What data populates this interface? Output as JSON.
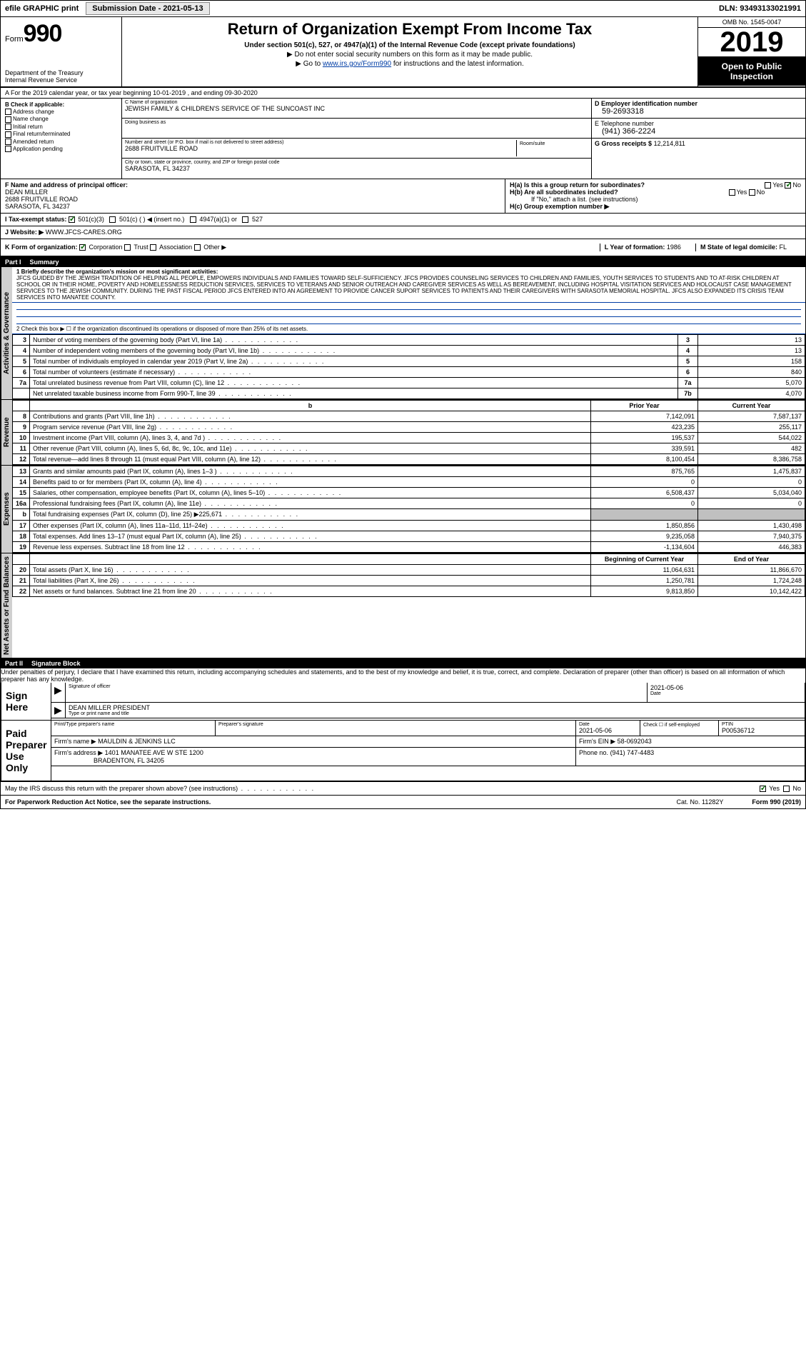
{
  "topbar": {
    "efile": "efile GRAPHIC print",
    "btn_label": "Submission Date - 2021-05-13",
    "dln": "DLN: 93493133021991"
  },
  "header": {
    "form_prefix": "Form",
    "form_num": "990",
    "dept": "Department of the Treasury\nInternal Revenue Service",
    "title": "Return of Organization Exempt From Income Tax",
    "sub1": "Under section 501(c), 527, or 4947(a)(1) of the Internal Revenue Code (except private foundations)",
    "sub2": "▶ Do not enter social security numbers on this form as it may be made public.",
    "sub3_pre": "▶ Go to ",
    "sub3_link": "www.irs.gov/Form990",
    "sub3_post": " for instructions and the latest information.",
    "omb": "OMB No. 1545-0047",
    "year": "2019",
    "open": "Open to Public Inspection"
  },
  "row_a": "A For the 2019 calendar year, or tax year beginning 10-01-2019  , and ending 09-30-2020",
  "col_b": {
    "title": "B Check if applicable:",
    "items": [
      "Address change",
      "Name change",
      "Initial return",
      "Final return/terminated",
      "Amended return",
      "Application pending"
    ]
  },
  "col_c": {
    "name_lbl": "C Name of organization",
    "name": "JEWISH FAMILY & CHILDREN'S SERVICE OF THE SUNCOAST INC",
    "dba_lbl": "Doing business as",
    "dba": "",
    "addr_lbl": "Number and street (or P.O. box if mail is not delivered to street address)",
    "addr": "2688 FRUITVILLE ROAD",
    "room_lbl": "Room/suite",
    "city_lbl": "City or town, state or province, country, and ZIP or foreign postal code",
    "city": "SARASOTA, FL  34237"
  },
  "col_d": {
    "lbl": "D Employer identification number",
    "val": "59-2693318"
  },
  "col_e": {
    "lbl": "E Telephone number",
    "val": "(941) 366-2224"
  },
  "col_g": {
    "lbl": "G Gross receipts $",
    "val": "12,214,811"
  },
  "col_f": {
    "lbl": "F  Name and address of principal officer:",
    "name": "DEAN MILLER",
    "addr1": "2688 FRUITVILLE ROAD",
    "addr2": "SARASOTA, FL  34237"
  },
  "col_h": {
    "ha": "H(a)  Is this a group return for subordinates?",
    "hb": "H(b)  Are all subordinates included?",
    "hb_note": "If \"No,\" attach a list. (see instructions)",
    "hc": "H(c)  Group exemption number ▶",
    "yes": "Yes",
    "no": "No"
  },
  "row_i": {
    "lbl": "I   Tax-exempt status:",
    "o1": "501(c)(3)",
    "o2": "501(c) (  ) ◀ (insert no.)",
    "o3": "4947(a)(1) or",
    "o4": "527"
  },
  "row_j": {
    "lbl": "J   Website: ▶",
    "val": "WWW.JFCS-CARES.ORG"
  },
  "row_k": {
    "lbl": "K Form of organization:",
    "o1": "Corporation",
    "o2": "Trust",
    "o3": "Association",
    "o4": "Other ▶",
    "l_lbl": "L Year of formation:",
    "l_val": "1986",
    "m_lbl": "M State of legal domicile:",
    "m_val": "FL"
  },
  "part1": {
    "hdr_num": "Part I",
    "hdr_title": "Summary",
    "side_gov": "Activities & Governance",
    "side_rev": "Revenue",
    "side_exp": "Expenses",
    "side_net": "Net Assets or Fund Balances",
    "q1_lbl": "1  Briefly describe the organization's mission or most significant activities:",
    "q1_text": "JFCS GUIDED BY THE JEWISH TRADITION OF HELPING ALL PEOPLE, EMPOWERS INDIVIDUALS AND FAMILIES TOWARD SELF-SUFFICIENCY. JFCS PROVIDES COUNSELING SERVICES TO CHILDREN AND FAMILIES, YOUTH SERVICES TO STUDENTS AND TO AT-RISK CHILDREN AT SCHOOL OR IN THEIR HOME, POVERTY AND HOMELESSNESS REDUCTION SERVICES, SERVICES TO VETERANS AND SENIOR OUTREACH AND CAREGIVER SERVICES AS WELL AS BEREAVEMENT, INCLUDING HOSPITAL VISITATION SERVICES AND HOLOCAUST CASE MANAGEMENT SERVICES TO THE JEWISH COMMUNITY. DURING THE PAST FISCAL PERIOD JFCS ENTERED INTO AN AGREEMENT TO PROVIDE CANCER SUPORT SERVICES TO PATIENTS AND THEIR CAREGIVERS WITH SARASOTA MEMORIAL HOSPITAL. JFCS ALSO EXPANDED ITS CRISIS TEAM SERVICES INTO MANATEE COUNTY.",
    "q2": "2   Check this box ▶ ☐ if the organization discontinued its operations or disposed of more than 25% of its net assets.",
    "lines_gov": [
      {
        "n": "3",
        "d": "Number of voting members of the governing body (Part VI, line 1a)",
        "b": "3",
        "v": "13"
      },
      {
        "n": "4",
        "d": "Number of independent voting members of the governing body (Part VI, line 1b)",
        "b": "4",
        "v": "13"
      },
      {
        "n": "5",
        "d": "Total number of individuals employed in calendar year 2019 (Part V, line 2a)",
        "b": "5",
        "v": "158"
      },
      {
        "n": "6",
        "d": "Total number of volunteers (estimate if necessary)",
        "b": "6",
        "v": "840"
      },
      {
        "n": "7a",
        "d": "Total unrelated business revenue from Part VIII, column (C), line 12",
        "b": "7a",
        "v": "5,070"
      },
      {
        "n": "",
        "d": "Net unrelated taxable business income from Form 990-T, line 39",
        "b": "7b",
        "v": "4,070"
      }
    ],
    "col_prior": "Prior Year",
    "col_curr": "Current Year",
    "lines_rev": [
      {
        "n": "8",
        "d": "Contributions and grants (Part VIII, line 1h)",
        "p": "7,142,091",
        "c": "7,587,137"
      },
      {
        "n": "9",
        "d": "Program service revenue (Part VIII, line 2g)",
        "p": "423,235",
        "c": "255,117"
      },
      {
        "n": "10",
        "d": "Investment income (Part VIII, column (A), lines 3, 4, and 7d )",
        "p": "195,537",
        "c": "544,022"
      },
      {
        "n": "11",
        "d": "Other revenue (Part VIII, column (A), lines 5, 6d, 8c, 9c, 10c, and 11e)",
        "p": "339,591",
        "c": "482"
      },
      {
        "n": "12",
        "d": "Total revenue—add lines 8 through 11 (must equal Part VIII, column (A), line 12)",
        "p": "8,100,454",
        "c": "8,386,758"
      }
    ],
    "lines_exp": [
      {
        "n": "13",
        "d": "Grants and similar amounts paid (Part IX, column (A), lines 1–3 )",
        "p": "875,765",
        "c": "1,475,837"
      },
      {
        "n": "14",
        "d": "Benefits paid to or for members (Part IX, column (A), line 4)",
        "p": "0",
        "c": "0"
      },
      {
        "n": "15",
        "d": "Salaries, other compensation, employee benefits (Part IX, column (A), lines 5–10)",
        "p": "6,508,437",
        "c": "5,034,040"
      },
      {
        "n": "16a",
        "d": "Professional fundraising fees (Part IX, column (A), line 11e)",
        "p": "0",
        "c": "0"
      },
      {
        "n": "b",
        "d": "Total fundraising expenses (Part IX, column (D), line 25) ▶225,671",
        "p": "",
        "c": "",
        "shade": true
      },
      {
        "n": "17",
        "d": "Other expenses (Part IX, column (A), lines 11a–11d, 11f–24e)",
        "p": "1,850,856",
        "c": "1,430,498"
      },
      {
        "n": "18",
        "d": "Total expenses. Add lines 13–17 (must equal Part IX, column (A), line 25)",
        "p": "9,235,058",
        "c": "7,940,375"
      },
      {
        "n": "19",
        "d": "Revenue less expenses. Subtract line 18 from line 12",
        "p": "-1,134,604",
        "c": "446,383"
      }
    ],
    "col_beg": "Beginning of Current Year",
    "col_end": "End of Year",
    "lines_net": [
      {
        "n": "20",
        "d": "Total assets (Part X, line 16)",
        "p": "11,064,631",
        "c": "11,866,670"
      },
      {
        "n": "21",
        "d": "Total liabilities (Part X, line 26)",
        "p": "1,250,781",
        "c": "1,724,248"
      },
      {
        "n": "22",
        "d": "Net assets or fund balances. Subtract line 21 from line 20",
        "p": "9,813,850",
        "c": "10,142,422"
      }
    ]
  },
  "part2": {
    "hdr_num": "Part II",
    "hdr_title": "Signature Block",
    "text": "Under penalties of perjury, I declare that I have examined this return, including accompanying schedules and statements, and to the best of my knowledge and belief, it is true, correct, and complete. Declaration of preparer (other than officer) is based on all information of which preparer has any knowledge."
  },
  "sign": {
    "lbl": "Sign Here",
    "sig_lbl": "Signature of officer",
    "date_lbl": "Date",
    "date_val": "2021-05-06",
    "name": "DEAN MILLER  PRESIDENT",
    "name_lbl": "Type or print name and title"
  },
  "preparer": {
    "lbl": "Paid Preparer Use Only",
    "r1": {
      "c1_lbl": "Print/Type preparer's name",
      "c1": "",
      "c2_lbl": "Preparer's signature",
      "c2": "",
      "c3_lbl": "Date",
      "c3": "2021-05-06",
      "c4_lbl": "Check ☐ if self-employed",
      "c5_lbl": "PTIN",
      "c5": "P00536712"
    },
    "r2": {
      "lbl": "Firm's name    ▶",
      "val": "MAULDIN & JENKINS LLC",
      "ein_lbl": "Firm's EIN ▶",
      "ein": "58-0692043"
    },
    "r3": {
      "lbl": "Firm's address ▶",
      "val1": "1401 MANATEE AVE W STE 1200",
      "val2": "BRADENTON, FL  34205",
      "ph_lbl": "Phone no.",
      "ph": "(941) 747-4483"
    }
  },
  "discuss": {
    "text": "May the IRS discuss this return with the preparer shown above? (see instructions)",
    "yes": "Yes",
    "no": "No"
  },
  "footer": {
    "left": "For Paperwork Reduction Act Notice, see the separate instructions.",
    "mid": "Cat. No. 11282Y",
    "right": "Form 990 (2019)"
  }
}
